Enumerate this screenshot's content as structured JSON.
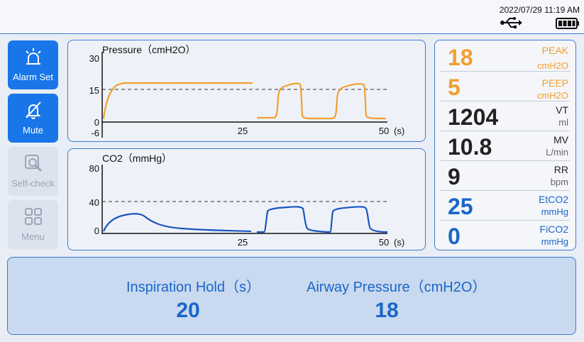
{
  "status": {
    "datetime": "2022/07/29 11:19  AM",
    "usb_icon": "usb-icon",
    "battery_icon": "battery-full-icon"
  },
  "sidebar": {
    "items": [
      {
        "label": "Alarm Set",
        "icon": "alarm-light-icon",
        "state": "active"
      },
      {
        "label": "Mute",
        "icon": "bell-off-icon",
        "state": "active"
      },
      {
        "label": "Self-check",
        "icon": "self-check-icon",
        "state": "disabled"
      },
      {
        "label": "Menu",
        "icon": "grid-icon",
        "state": "disabled"
      }
    ]
  },
  "waveforms": {
    "pressure": {
      "title": "Pressure（cmH2O）",
      "y_ticks": [
        "30",
        "15",
        "0",
        "-6"
      ],
      "x_ticks": [
        "25",
        "50"
      ],
      "x_unit": "(s)",
      "ylim": [
        -6,
        30
      ],
      "dashed_at": 15,
      "color": "#f0a030"
    },
    "co2": {
      "title": "CO2（mmHg）",
      "y_ticks": [
        "80",
        "40",
        "0"
      ],
      "x_ticks": [
        "25",
        "50"
      ],
      "x_unit": "(s)",
      "ylim": [
        0,
        80
      ],
      "dashed_at": 40,
      "color": "#1a55c0"
    }
  },
  "parameters": [
    {
      "value": "18",
      "name": "PEAK",
      "unit": "cmH2O",
      "color": "#f0a030"
    },
    {
      "value": "5",
      "name": "PEEP",
      "unit": "cmH2O",
      "color": "#f0a030"
    },
    {
      "value": "1204",
      "name": "VT",
      "unit": "ml",
      "color": "#222222"
    },
    {
      "value": "10.8",
      "name": "MV",
      "unit": "L/min",
      "color": "#222222"
    },
    {
      "value": "9",
      "name": "RR",
      "unit": "bpm",
      "color": "#222222"
    },
    {
      "value": "25",
      "name": "EtCO2",
      "unit": "mmHg",
      "color": "#1a66c9"
    },
    {
      "value": "0",
      "name": "FiCO2",
      "unit": "mmHg",
      "color": "#1a66c9"
    }
  ],
  "bottom": {
    "inspiration_hold_label": "Inspiration Hold（s）",
    "inspiration_hold_value": "20",
    "airway_pressure_label": "Airway Pressure（cmH2O）",
    "airway_pressure_value": "18"
  }
}
